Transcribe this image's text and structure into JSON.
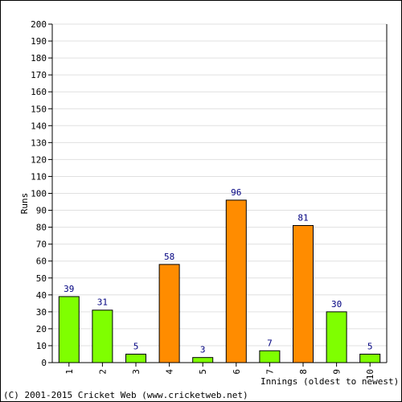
{
  "chart_data": {
    "type": "bar",
    "xlabel": "Innings (oldest to newest)",
    "ylabel": "Runs",
    "ylim": [
      0,
      200
    ],
    "ytick_step": 10,
    "grid": true,
    "categories": [
      "1",
      "2",
      "3",
      "4",
      "5",
      "6",
      "7",
      "8",
      "9",
      "10"
    ],
    "values": [
      39,
      31,
      5,
      58,
      3,
      96,
      7,
      81,
      30,
      5
    ],
    "bar_status": [
      "out",
      "out",
      "out",
      "not out",
      "out",
      "not out",
      "out",
      "not out",
      "out",
      "out"
    ],
    "colors": {
      "out": "#7fff00",
      "not out": "#ff8c00"
    }
  },
  "footer": {
    "copyright": "(C) 2001-2015 Cricket Web (www.cricketweb.net)"
  }
}
